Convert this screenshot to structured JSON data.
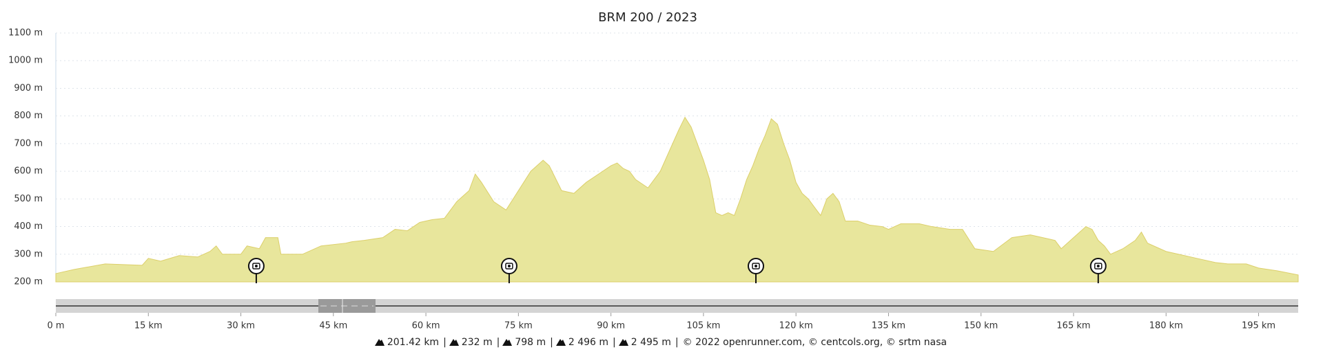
{
  "chart_data": {
    "type": "area",
    "title": "BRM 200 / 2023",
    "x": [
      0,
      3,
      8,
      14,
      15,
      17,
      20,
      23,
      25,
      26,
      27,
      30,
      31,
      33,
      34,
      36,
      36.5,
      40,
      43,
      47,
      48,
      50,
      53,
      55,
      57,
      59,
      61,
      63,
      64,
      65,
      67,
      68,
      69,
      71,
      73,
      75,
      77,
      79,
      80,
      82,
      84,
      86,
      88,
      90,
      91,
      92,
      93,
      94,
      96,
      98,
      100,
      101,
      102,
      103,
      104,
      105,
      106,
      107,
      108,
      109,
      110,
      111,
      112,
      113,
      114,
      115,
      116,
      117,
      118,
      119,
      120,
      121,
      122,
      123,
      124,
      125,
      126,
      127,
      128,
      130,
      132,
      134,
      135,
      137,
      140,
      142,
      145,
      147,
      149,
      152,
      155,
      158,
      160,
      162,
      163,
      165,
      166,
      167,
      168,
      169,
      170,
      171,
      173,
      175,
      176,
      177,
      180,
      182,
      185,
      188,
      190,
      193,
      195,
      198,
      201.42
    ],
    "values": [
      230,
      245,
      265,
      260,
      285,
      275,
      295,
      290,
      310,
      330,
      300,
      300,
      330,
      320,
      360,
      360,
      300,
      300,
      330,
      340,
      345,
      350,
      360,
      390,
      385,
      415,
      425,
      430,
      460,
      490,
      530,
      590,
      560,
      490,
      460,
      530,
      600,
      640,
      620,
      530,
      520,
      560,
      590,
      620,
      630,
      610,
      600,
      570,
      540,
      600,
      700,
      750,
      795,
      760,
      700,
      640,
      570,
      450,
      440,
      450,
      440,
      500,
      570,
      620,
      680,
      730,
      790,
      770,
      700,
      640,
      560,
      520,
      500,
      470,
      440,
      500,
      520,
      490,
      420,
      420,
      405,
      400,
      390,
      410,
      410,
      400,
      390,
      390,
      320,
      310,
      360,
      370,
      360,
      350,
      320,
      360,
      380,
      400,
      390,
      350,
      330,
      300,
      320,
      350,
      380,
      340,
      310,
      300,
      285,
      270,
      265,
      265,
      250,
      240,
      225
    ],
    "color": "#e8e69c",
    "xlim": [
      0,
      201.42
    ],
    "ylim": [
      200,
      1100
    ],
    "xticks": [
      {
        "value": 0,
        "label": "0 m"
      },
      {
        "value": 15,
        "label": "15 km"
      },
      {
        "value": 30,
        "label": "30 km"
      },
      {
        "value": 45,
        "label": "45 km"
      },
      {
        "value": 60,
        "label": "60 km"
      },
      {
        "value": 75,
        "label": "75 km"
      },
      {
        "value": 90,
        "label": "90 km"
      },
      {
        "value": 105,
        "label": "105 km"
      },
      {
        "value": 120,
        "label": "120 km"
      },
      {
        "value": 135,
        "label": "135 km"
      },
      {
        "value": 150,
        "label": "150 km"
      },
      {
        "value": 165,
        "label": "165 km"
      },
      {
        "value": 180,
        "label": "180 km"
      },
      {
        "value": 195,
        "label": "195 km"
      }
    ],
    "yticks": [
      {
        "value": 200,
        "label": "200 m"
      },
      {
        "value": 300,
        "label": "300 m"
      },
      {
        "value": 400,
        "label": "400 m"
      },
      {
        "value": 500,
        "label": "500 m"
      },
      {
        "value": 600,
        "label": "600 m"
      },
      {
        "value": 700,
        "label": "700 m"
      },
      {
        "value": 800,
        "label": "800 m"
      },
      {
        "value": 900,
        "label": "900 m"
      },
      {
        "value": 1000,
        "label": "1000 m"
      },
      {
        "value": 1100,
        "label": "1100 m"
      }
    ],
    "grid": true,
    "markers_x": [
      32.5,
      73.5,
      113.5,
      169
    ]
  },
  "footer": {
    "stats": [
      "201.42 km",
      "232 m",
      "798 m",
      "2 496 m",
      "2 495 m"
    ],
    "separator": "|",
    "credit": "© 2022 openrunner.com, © centcols.org, © srtm nasa"
  }
}
